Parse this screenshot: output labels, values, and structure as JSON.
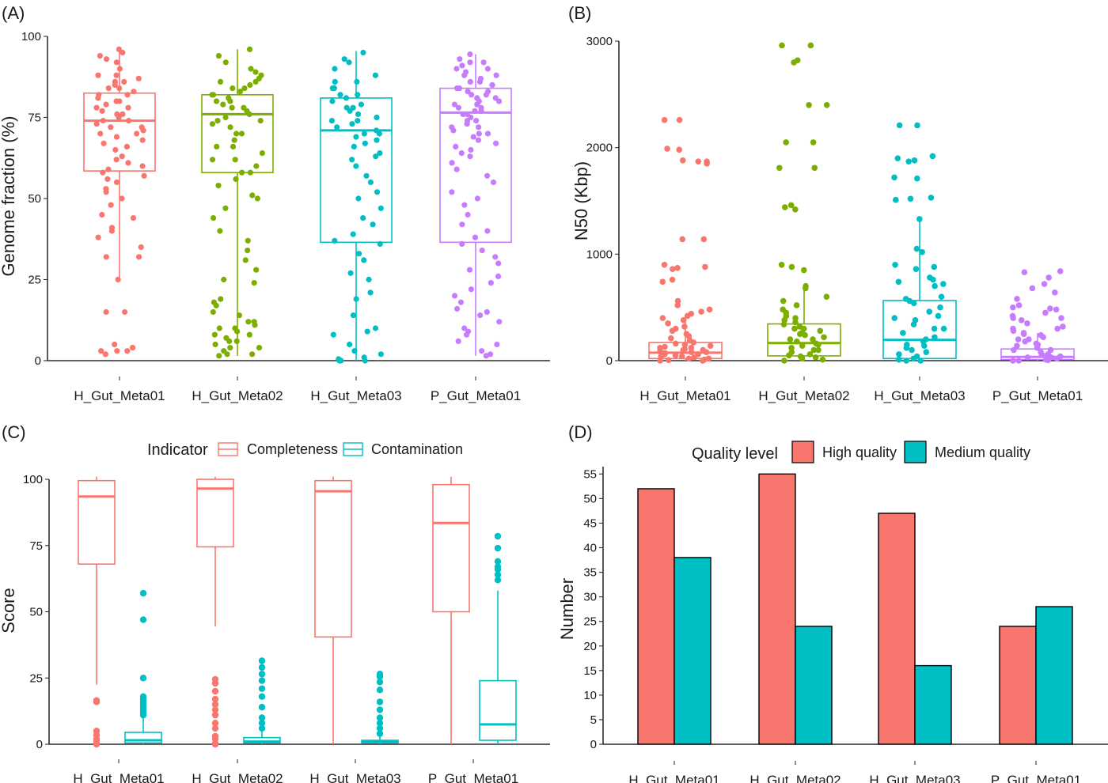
{
  "colors": {
    "H_Gut_Meta01": "#F8766D",
    "H_Gut_Meta02": "#7CAE00",
    "H_Gut_Meta03": "#00BFC4",
    "P_Gut_Meta01": "#C77CFF",
    "completeness": "#F8766D",
    "contamination": "#00BFC4",
    "high_quality": "#F8766D",
    "medium_quality": "#00BFC4"
  },
  "chart_data": [
    {
      "panel": "(A)",
      "type": "box",
      "categories": [
        "H_Gut_Meta01",
        "H_Gut_Meta02",
        "H_Gut_Meta03",
        "P_Gut_Meta01"
      ],
      "ylabel": "Genome fraction (%)",
      "ylim": [
        0,
        100
      ],
      "yticks": [
        0,
        25,
        50,
        75,
        100
      ],
      "boxes": [
        {
          "q1": 58.5,
          "median": 74,
          "q3": 82.5,
          "whisker_low": 25.5,
          "whisker_high": 96
        },
        {
          "q1": 58,
          "median": 76,
          "q3": 82,
          "whisker_low": 1.5,
          "whisker_high": 96
        },
        {
          "q1": 36.5,
          "median": 71,
          "q3": 81,
          "whisker_low": 0,
          "whisker_high": 95.5
        },
        {
          "q1": 36.5,
          "median": 76.5,
          "q3": 84,
          "whisker_low": 1.5,
          "whisker_high": 94.5
        }
      ],
      "points": [
        [
          96,
          95,
          94,
          93,
          92,
          90,
          88,
          87,
          86,
          85,
          84,
          83,
          82,
          81,
          80,
          79,
          78,
          77,
          76,
          75,
          74,
          73,
          72,
          71,
          70,
          69,
          68,
          67,
          65,
          63,
          61,
          59,
          58,
          57,
          55,
          53,
          50,
          48,
          45,
          44,
          41,
          40,
          38,
          35,
          32,
          32,
          25,
          15,
          15,
          5,
          4,
          3,
          3,
          2,
          3,
          82,
          78,
          86,
          74,
          66,
          60,
          72,
          80,
          84,
          88,
          70,
          76,
          62,
          56,
          52
        ],
        [
          96,
          94,
          92,
          90,
          89,
          88,
          87,
          86,
          85,
          84,
          83,
          82,
          81,
          80,
          79,
          78,
          77,
          76,
          75,
          74,
          73,
          72,
          70,
          68,
          66,
          64,
          62,
          60,
          58,
          56,
          54,
          51,
          50,
          47,
          44,
          40,
          37,
          34,
          31,
          28,
          25,
          24,
          19,
          18,
          17,
          15,
          14,
          12,
          11,
          10,
          9,
          8,
          7,
          6,
          5,
          4,
          3,
          2,
          2,
          1.5,
          86,
          82,
          78,
          80,
          84,
          74,
          70,
          66,
          62,
          58,
          10,
          8,
          6,
          4,
          12
        ],
        [
          95,
          93,
          92,
          90,
          88,
          86,
          84,
          82,
          81,
          80,
          79,
          78,
          77,
          76,
          75,
          74,
          73,
          72,
          71,
          70,
          69,
          68,
          67,
          66,
          64,
          63,
          62,
          60,
          57,
          55,
          52,
          50,
          47,
          44,
          42,
          39,
          37,
          36,
          33,
          31,
          27,
          25,
          21,
          19,
          14,
          10,
          9,
          8,
          5,
          3,
          2,
          1,
          0.5,
          0,
          0,
          0,
          82,
          78,
          74,
          70,
          86,
          84
        ],
        [
          94.5,
          93,
          92,
          91,
          90,
          89,
          88,
          87,
          86,
          85,
          84,
          83,
          82,
          81,
          80,
          79,
          78,
          77,
          76,
          75,
          74,
          73,
          72,
          71,
          70,
          69,
          68,
          67,
          66,
          65,
          64,
          63,
          61,
          59,
          57,
          55,
          52,
          50,
          48,
          45,
          42,
          40,
          38,
          36,
          34,
          32,
          30,
          28,
          26,
          24,
          22,
          20,
          18,
          16,
          15,
          14,
          12,
          10,
          9,
          8,
          6,
          5,
          3,
          2,
          1.5,
          88,
          86,
          84,
          82,
          80,
          78,
          76,
          74,
          72,
          70,
          90,
          92,
          85,
          83,
          81,
          79,
          77
        ]
      ]
    },
    {
      "panel": "(B)",
      "type": "box",
      "categories": [
        "H_Gut_Meta01",
        "H_Gut_Meta02",
        "H_Gut_Meta03",
        "P_Gut_Meta01"
      ],
      "ylabel": "N50 (Kbp)",
      "ylim": [
        0,
        3000
      ],
      "yticks": [
        0,
        1000,
        2000,
        3000
      ],
      "boxes": [
        {
          "q1": 20,
          "median": 75,
          "q3": 170,
          "whisker_low": 0,
          "whisker_high": 380
        },
        {
          "q1": 45,
          "median": 165,
          "q3": 345,
          "whisker_low": 0,
          "whisker_high": 700
        },
        {
          "q1": 20,
          "median": 195,
          "q3": 565,
          "whisker_low": 0,
          "whisker_high": 1320
        },
        {
          "q1": 10,
          "median": 35,
          "q3": 110,
          "whisker_low": 0,
          "whisker_high": 260
        }
      ],
      "points": [
        [
          2260,
          2260,
          1990,
          1980,
          1870,
          1870,
          1850,
          1880,
          1140,
          1140,
          900,
          880,
          870,
          860,
          760,
          740,
          560,
          520,
          480,
          460,
          440,
          420,
          400,
          380,
          350,
          320,
          300,
          280,
          250,
          230,
          210,
          190,
          170,
          150,
          130,
          120,
          110,
          100,
          90,
          80,
          70,
          60,
          50,
          40,
          30,
          20,
          10,
          5,
          0,
          0,
          140,
          100,
          60,
          20,
          80,
          40,
          160,
          120
        ],
        [
          2960,
          2960,
          2820,
          2800,
          2400,
          2400,
          2050,
          2050,
          1810,
          1810,
          1460,
          1440,
          1420,
          900,
          880,
          850,
          700,
          680,
          600,
          560,
          520,
          480,
          450,
          420,
          400,
          380,
          360,
          340,
          320,
          300,
          280,
          260,
          240,
          220,
          200,
          180,
          160,
          140,
          120,
          100,
          80,
          60,
          40,
          20,
          10,
          0,
          300,
          250,
          200,
          150,
          100,
          50,
          30
        ],
        [
          2210,
          2210,
          1920,
          1900,
          1880,
          1870,
          1720,
          1710,
          1530,
          1520,
          1510,
          1330,
          1050,
          1020,
          900,
          880,
          860,
          780,
          760,
          740,
          720,
          700,
          600,
          580,
          560,
          540,
          500,
          460,
          420,
          380,
          340,
          300,
          260,
          220,
          180,
          140,
          100,
          80,
          60,
          40,
          20,
          10,
          0,
          0,
          400,
          300,
          200,
          150,
          120
        ],
        [
          840,
          830,
          780,
          720,
          680,
          640,
          580,
          520,
          500,
          490,
          480,
          450,
          420,
          400,
          380,
          350,
          320,
          300,
          280,
          260,
          240,
          220,
          200,
          180,
          160,
          140,
          120,
          100,
          80,
          60,
          50,
          40,
          30,
          20,
          10,
          5,
          0,
          0,
          200,
          150,
          100,
          60,
          30,
          400,
          300,
          250
        ]
      ]
    },
    {
      "panel": "(C)",
      "type": "box",
      "categories": [
        "H_Gut_Meta01",
        "H_Gut_Meta02",
        "H_Gut_Meta03",
        "P_Gut_Meta01"
      ],
      "ylabel": "Score",
      "ylim": [
        0,
        100
      ],
      "yticks": [
        0,
        25,
        50,
        75,
        100
      ],
      "legend_title": "Indicator",
      "series": [
        {
          "name": "Completeness",
          "boxes": [
            {
              "q1": 68,
              "median": 93.5,
              "q3": 99.5,
              "whisker_low": 22.5,
              "whisker_high": 101
            },
            {
              "q1": 74.5,
              "median": 96.5,
              "q3": 100,
              "whisker_low": 44.5,
              "whisker_high": 101
            },
            {
              "q1": 40.5,
              "median": 95.5,
              "q3": 99.5,
              "whisker_low": 0,
              "whisker_high": 101
            },
            {
              "q1": 50,
              "median": 83.5,
              "q3": 98,
              "whisker_low": 0,
              "whisker_high": 101
            }
          ],
          "outliers": [
            [
              16.5,
              16,
              5,
              3.5,
              2,
              1,
              0.5,
              0
            ],
            [
              24.5,
              23,
              20,
              17,
              15,
              13,
              11,
              8,
              6,
              3,
              2,
              0.5,
              0
            ],
            [],
            []
          ]
        },
        {
          "name": "Contamination",
          "boxes": [
            {
              "q1": 0.5,
              "median": 1.5,
              "q3": 4.5,
              "whisker_low": 0,
              "whisker_high": 10
            },
            {
              "q1": 0.5,
              "median": 1,
              "q3": 2.5,
              "whisker_low": 0,
              "whisker_high": 5
            },
            {
              "q1": 0.5,
              "median": 1,
              "q3": 1.5,
              "whisker_low": 0,
              "whisker_high": 3
            },
            {
              "q1": 1.5,
              "median": 7.5,
              "q3": 24,
              "whisker_low": 0,
              "whisker_high": 58
            }
          ],
          "outliers": [
            [
              57,
              47,
              25,
              18,
              17,
              16,
              15,
              14,
              13,
              12,
              11
            ],
            [
              31.5,
              29,
              26.5,
              24,
              21,
              18,
              14,
              10,
              8,
              6
            ],
            [
              26.5,
              25.5,
              23.5,
              20.5,
              16,
              13,
              10,
              8,
              6,
              4
            ],
            [
              78.5,
              74,
              69,
              67,
              66,
              64,
              62
            ]
          ]
        }
      ]
    },
    {
      "panel": "(D)",
      "type": "bar",
      "categories": [
        "H_Gut_Meta01",
        "H_Gut_Meta02",
        "H_Gut_Meta03",
        "P_Gut_Meta01"
      ],
      "ylabel": "Number",
      "ylim": [
        0,
        56.5
      ],
      "yticks": [
        0,
        5,
        10,
        15,
        20,
        25,
        30,
        35,
        40,
        45,
        50,
        55
      ],
      "legend_title": "Quality level",
      "series": [
        {
          "name": "High quality",
          "values": [
            52,
            55,
            47,
            24
          ]
        },
        {
          "name": "Medium quality",
          "values": [
            38,
            24,
            16,
            28
          ]
        }
      ]
    }
  ]
}
